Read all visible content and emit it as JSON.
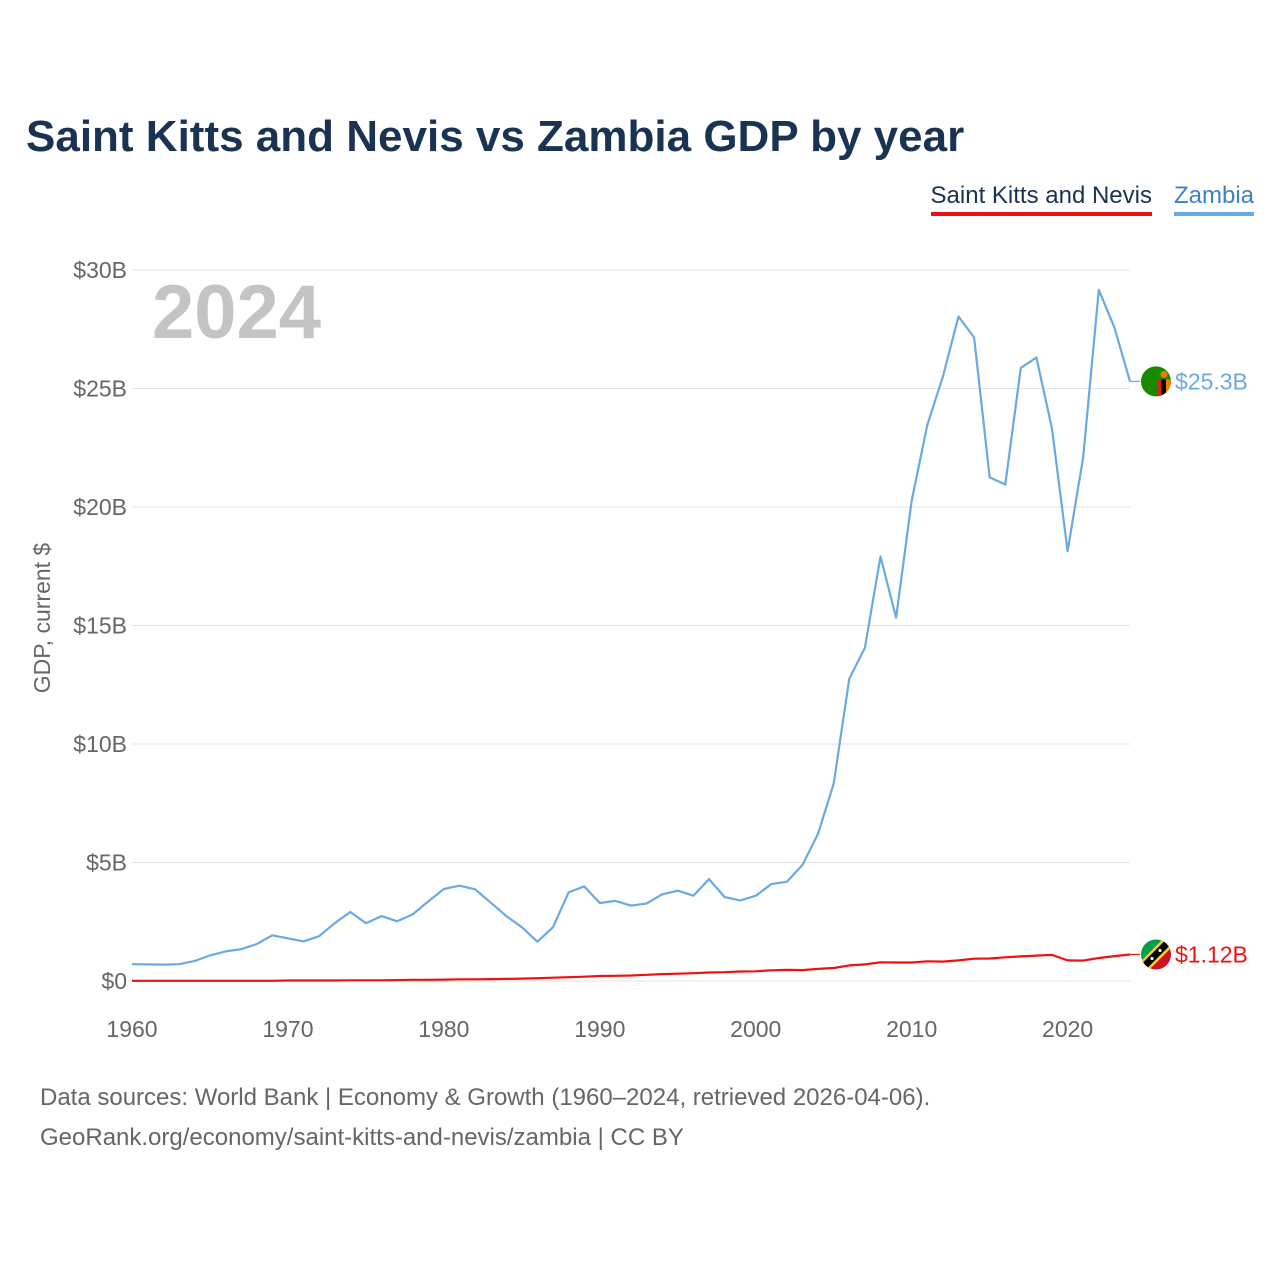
{
  "header": {
    "title": "Saint Kitts and Nevis vs Zambia GDP by year"
  },
  "legend": {
    "items": [
      {
        "label": "Saint Kitts and Nevis",
        "color": "#ee1111"
      },
      {
        "label": "Zambia",
        "color": "#6aa9e4"
      }
    ]
  },
  "footer": {
    "line1": "Data sources: World Bank | Economy & Growth (1960–2024, retrieved 2026-04-06).",
    "line2": "GeoRank.org/economy/saint-kitts-and-nevis/zambia | CC BY"
  },
  "chart_data": {
    "type": "line",
    "title": "Saint Kitts and Nevis vs Zambia GDP by year",
    "year_label": "2024",
    "xlabel": "",
    "ylabel": "GDP, current $",
    "xlim": [
      1960,
      2024
    ],
    "ylim": [
      0,
      30
    ],
    "x_ticks": [
      1960,
      1970,
      1980,
      1990,
      2000,
      2010,
      2020
    ],
    "y_ticks": [
      0,
      5,
      10,
      15,
      20,
      25,
      30
    ],
    "y_tick_labels": [
      "$0",
      "$5B",
      "$10B",
      "$15B",
      "$20B",
      "$25B",
      "$30B"
    ],
    "grid": true,
    "unit": "billions of current US$",
    "x": [
      1960,
      1961,
      1962,
      1963,
      1964,
      1965,
      1966,
      1967,
      1968,
      1969,
      1970,
      1971,
      1972,
      1973,
      1974,
      1975,
      1976,
      1977,
      1978,
      1979,
      1980,
      1981,
      1982,
      1983,
      1984,
      1985,
      1986,
      1987,
      1988,
      1989,
      1990,
      1991,
      1992,
      1993,
      1994,
      1995,
      1996,
      1997,
      1998,
      1999,
      2000,
      2001,
      2002,
      2003,
      2004,
      2005,
      2006,
      2007,
      2008,
      2009,
      2010,
      2011,
      2012,
      2013,
      2014,
      2015,
      2016,
      2017,
      2018,
      2019,
      2020,
      2021,
      2022,
      2023,
      2024
    ],
    "series": [
      {
        "name": "Zambia",
        "color": "#6aa9e4",
        "end_label": "$25.3B",
        "values": [
          0.71,
          0.7,
          0.69,
          0.71,
          0.84,
          1.08,
          1.25,
          1.34,
          1.56,
          1.93,
          1.8,
          1.67,
          1.89,
          2.44,
          2.91,
          2.44,
          2.74,
          2.52,
          2.81,
          3.36,
          3.88,
          4.02,
          3.87,
          3.31,
          2.74,
          2.27,
          1.66,
          2.27,
          3.74,
          3.99,
          3.29,
          3.38,
          3.18,
          3.27,
          3.66,
          3.81,
          3.6,
          4.3,
          3.54,
          3.4,
          3.6,
          4.09,
          4.19,
          4.9,
          6.22,
          8.33,
          12.76,
          14.06,
          17.91,
          15.33,
          20.27,
          23.46,
          25.5,
          28.04,
          27.15,
          21.25,
          20.95,
          25.87,
          26.31,
          23.31,
          18.14,
          22.1,
          29.16,
          27.58,
          25.3
        ]
      },
      {
        "name": "Saint Kitts and Nevis",
        "color": "#ee1111",
        "end_label": "$1.12B",
        "values": [
          0.01,
          0.01,
          0.01,
          0.01,
          0.01,
          0.01,
          0.01,
          0.01,
          0.01,
          0.01,
          0.02,
          0.02,
          0.02,
          0.02,
          0.03,
          0.03,
          0.03,
          0.04,
          0.05,
          0.05,
          0.06,
          0.07,
          0.07,
          0.08,
          0.09,
          0.1,
          0.12,
          0.14,
          0.16,
          0.18,
          0.21,
          0.22,
          0.23,
          0.26,
          0.29,
          0.31,
          0.33,
          0.36,
          0.37,
          0.4,
          0.41,
          0.45,
          0.47,
          0.46,
          0.51,
          0.55,
          0.66,
          0.7,
          0.79,
          0.78,
          0.78,
          0.83,
          0.82,
          0.87,
          0.94,
          0.95,
          1.0,
          1.04,
          1.07,
          1.1,
          0.87,
          0.86,
          0.97,
          1.05,
          1.12
        ]
      }
    ]
  }
}
